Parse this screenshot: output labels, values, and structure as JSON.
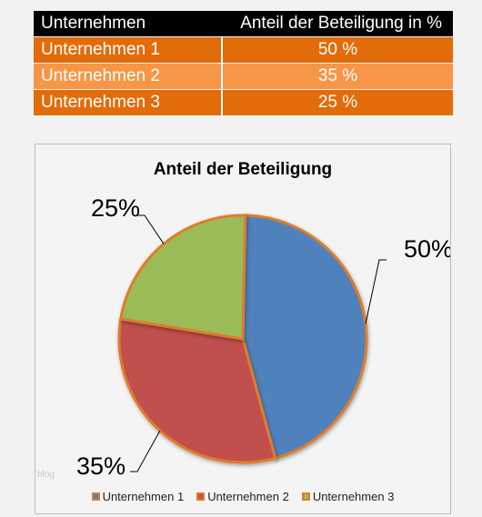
{
  "table": {
    "header": {
      "col1": "Unternehmen",
      "col2": "Anteil der Beteiligung in %"
    },
    "rows": [
      {
        "name": "Unternehmen 1",
        "value": "50 %",
        "color": "#e36c0a"
      },
      {
        "name": "Unternehmen 2",
        "value": "35 %",
        "color": "#f79646"
      },
      {
        "name": "Unternehmen 3",
        "value": "25 %",
        "color": "#e36c0a"
      }
    ]
  },
  "watermark": "blog",
  "chart_data": {
    "type": "pie",
    "title": "Anteil der Beteiligung",
    "categories": [
      "Unternehmen 1",
      "Unternehmen 2",
      "Unternehmen 3"
    ],
    "values": [
      50,
      35,
      25
    ],
    "labels": [
      "50%",
      "35%",
      "25%"
    ],
    "colors": [
      "#4f81bd",
      "#c0504d",
      "#9bbb59"
    ],
    "border_color": "#e07b2a",
    "legend": "bottom"
  }
}
